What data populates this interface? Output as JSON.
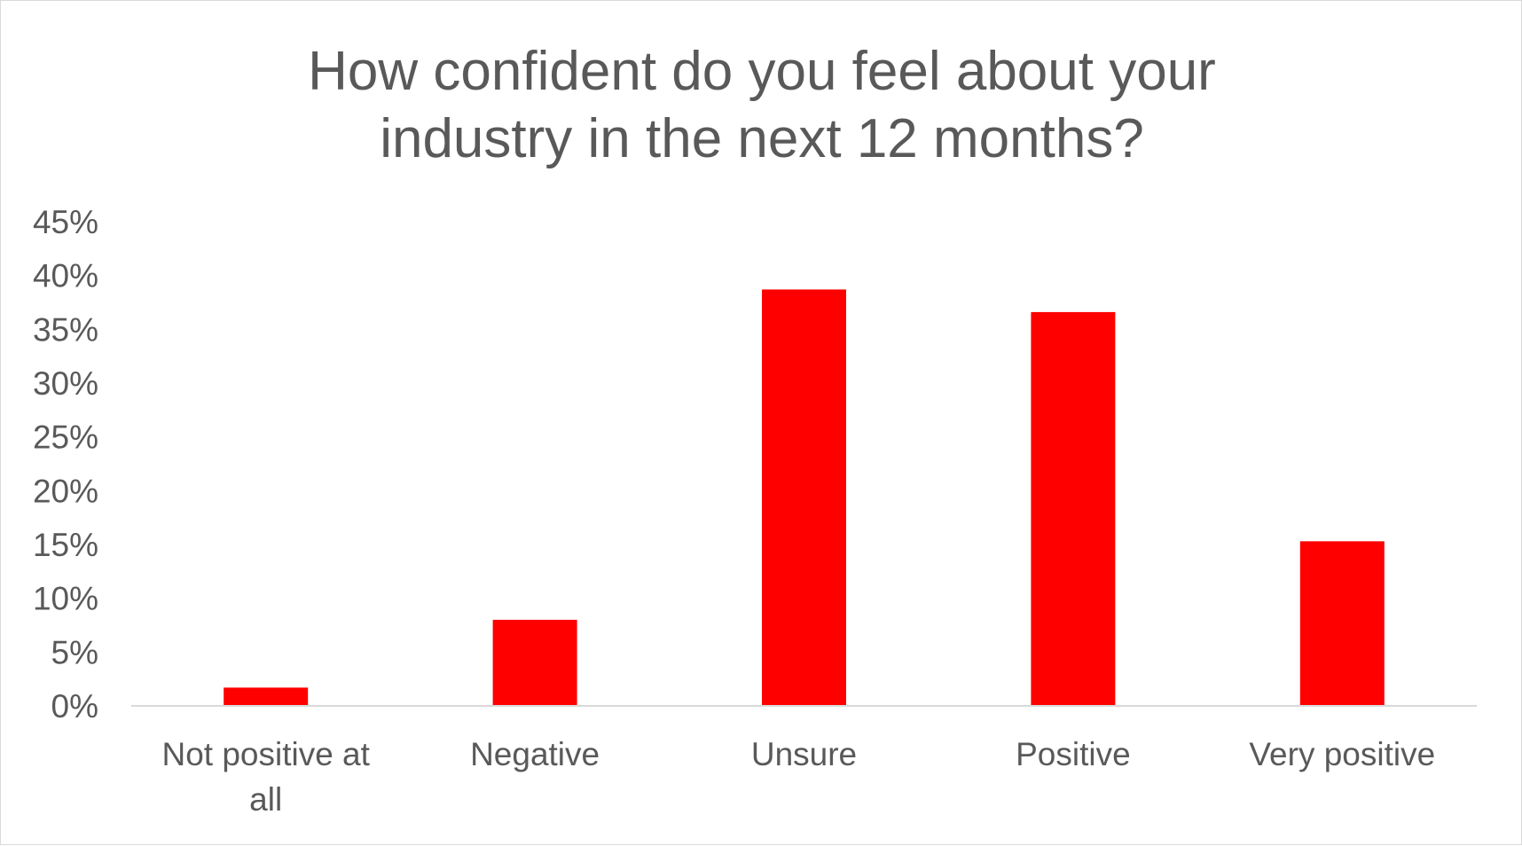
{
  "chart_data": {
    "type": "bar",
    "title_lines": [
      "How confident do you feel about your",
      "industry in the next 12 months?"
    ],
    "categories": [
      [
        "Not positive at",
        "all"
      ],
      [
        "Negative"
      ],
      [
        "Unsure"
      ],
      [
        "Positive"
      ],
      [
        "Very positive"
      ]
    ],
    "values": [
      1.7,
      8.0,
      38.7,
      36.6,
      15.3
    ],
    "value_unit": "%",
    "ylim": [
      0,
      45
    ],
    "y_ticks": [
      0,
      5,
      10,
      15,
      20,
      25,
      30,
      35,
      40,
      45
    ],
    "y_tick_labels": [
      "0%",
      "5%",
      "10%",
      "15%",
      "20%",
      "25%",
      "30%",
      "35%",
      "40%",
      "45%"
    ],
    "gridlines": false,
    "legend": "none",
    "bar_color": "#ff0000",
    "axis_color": "#d9d9d9",
    "text_color": "#595959"
  }
}
